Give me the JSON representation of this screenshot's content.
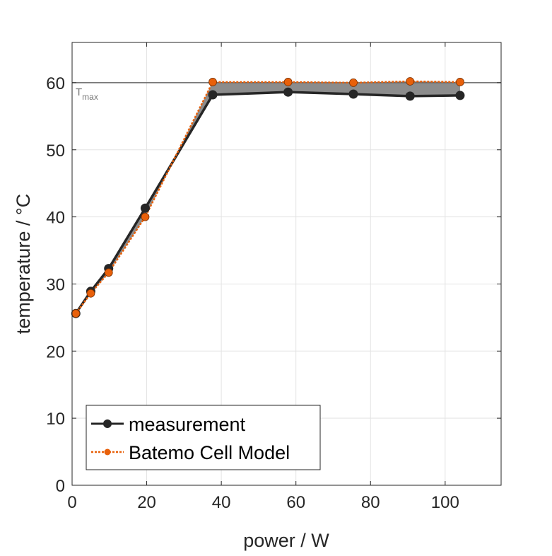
{
  "chart_data": {
    "type": "line",
    "title": "",
    "xlabel": "power / W",
    "ylabel": "temperature / °C",
    "xlim": [
      0,
      115
    ],
    "ylim": [
      0,
      66
    ],
    "xticks": [
      0,
      20,
      40,
      60,
      80,
      100
    ],
    "yticks": [
      0,
      10,
      20,
      30,
      40,
      50,
      60
    ],
    "grid": true,
    "legend_position": "bottom-left",
    "reference_line": {
      "y": 60,
      "label": "T",
      "label_sub": "max",
      "color": "#666666"
    },
    "fill_between_color": "#8c8c8c",
    "series": [
      {
        "name": "measurement",
        "color": "#262626",
        "style": "solid",
        "x": [
          1,
          5,
          9.8,
          19.6,
          37.7,
          57.9,
          75.4,
          90.6,
          104
        ],
        "y": [
          25.6,
          28.9,
          32.3,
          41.3,
          58.2,
          58.6,
          58.3,
          58.0,
          58.1
        ]
      },
      {
        "name": "Batemo Cell Model",
        "color": "#e8600a",
        "style": "dotted",
        "x": [
          1,
          5,
          9.8,
          19.6,
          37.7,
          57.9,
          75.4,
          90.6,
          104
        ],
        "y": [
          25.6,
          28.6,
          31.7,
          40.0,
          60.1,
          60.1,
          60.0,
          60.2,
          60.1
        ]
      }
    ]
  }
}
